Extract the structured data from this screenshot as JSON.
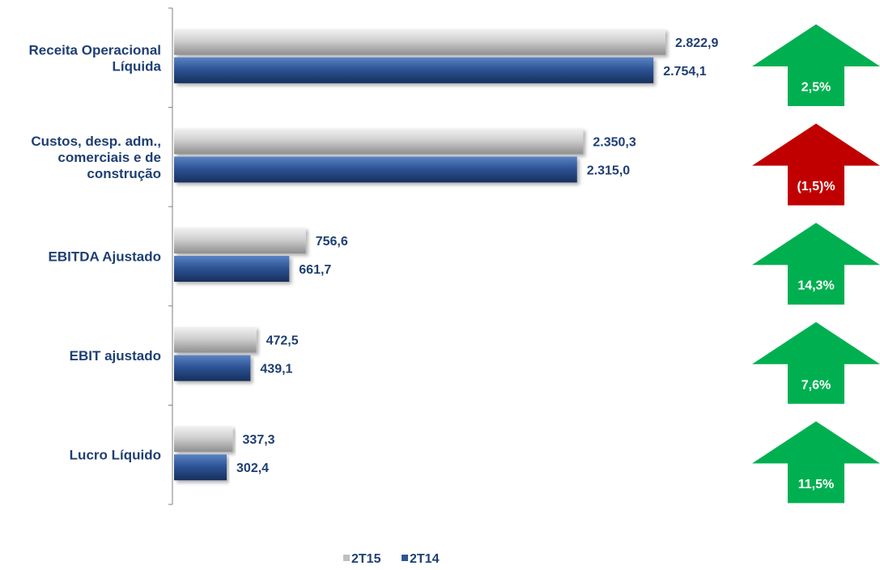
{
  "chart_data": {
    "type": "bar",
    "orientation": "horizontal",
    "categories": [
      [
        "Receita Operacional",
        "Líquida"
      ],
      [
        "Custos, desp. adm.,",
        "comerciais e de",
        "construção"
      ],
      [
        "EBITDA Ajustado"
      ],
      [
        "EBIT ajustado"
      ],
      [
        "Lucro Líquido"
      ]
    ],
    "series": [
      {
        "name": "2T15",
        "color": "#bfbfbf",
        "values": [
          2822.9,
          2350.3,
          756.6,
          472.5,
          337.3
        ],
        "labels": [
          "2.822,9",
          "2.350,3",
          "756,6",
          "472,5",
          "337,3"
        ]
      },
      {
        "name": "2T14",
        "color": "#2e5597",
        "values": [
          2754.1,
          2315.0,
          661.7,
          439.1,
          302.4
        ],
        "labels": [
          "2.754,1",
          "2.315,0",
          "661,7",
          "439,1",
          "302,4"
        ]
      }
    ],
    "changes": [
      {
        "label": "2,5%",
        "direction": "up",
        "color": "#00b050"
      },
      {
        "label": "(1,5)%",
        "direction": "up",
        "color": "#c00000"
      },
      {
        "label": "14,3%",
        "direction": "up",
        "color": "#00b050"
      },
      {
        "label": "7,6%",
        "direction": "up",
        "color": "#00b050"
      },
      {
        "label": "11,5%",
        "direction": "up",
        "color": "#00b050"
      }
    ],
    "xlim": [
      0,
      3000
    ],
    "grid": false,
    "legend_position": "bottom-center",
    "label_color": "#1f3f73"
  }
}
